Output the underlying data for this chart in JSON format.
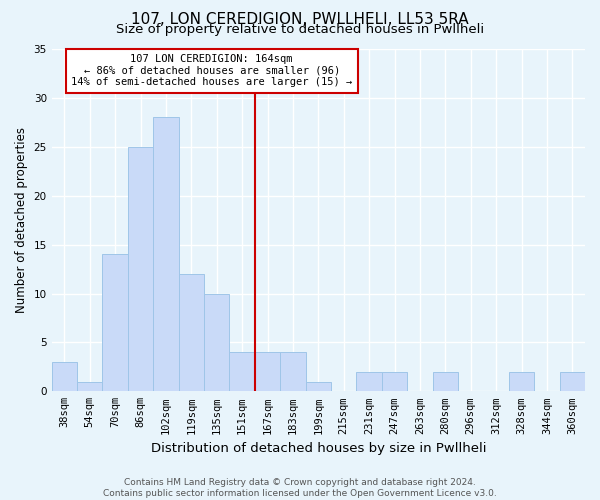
{
  "title": "107, LON CEREDIGION, PWLLHELI, LL53 5RA",
  "subtitle": "Size of property relative to detached houses in Pwllheli",
  "xlabel": "Distribution of detached houses by size in Pwllheli",
  "ylabel": "Number of detached properties",
  "categories": [
    "38sqm",
    "54sqm",
    "70sqm",
    "86sqm",
    "102sqm",
    "119sqm",
    "135sqm",
    "151sqm",
    "167sqm",
    "183sqm",
    "199sqm",
    "215sqm",
    "231sqm",
    "247sqm",
    "263sqm",
    "280sqm",
    "296sqm",
    "312sqm",
    "328sqm",
    "344sqm",
    "360sqm"
  ],
  "values": [
    3,
    1,
    14,
    25,
    28,
    12,
    10,
    4,
    4,
    4,
    1,
    0,
    2,
    2,
    0,
    2,
    0,
    0,
    2,
    0,
    2
  ],
  "bar_color": "#c9daf8",
  "bar_edge_color": "#9fc5e8",
  "background_color": "#e8f4fb",
  "grid_color": "#ffffff",
  "vline_x_index": 8,
  "vline_color": "#cc0000",
  "annotation_box_color": "#cc0000",
  "annotation_lines": [
    "107 LON CEREDIGION: 164sqm",
    "← 86% of detached houses are smaller (96)",
    "14% of semi-detached houses are larger (15) →"
  ],
  "annotation_fontsize": 7.5,
  "ylim": [
    0,
    35
  ],
  "yticks": [
    0,
    5,
    10,
    15,
    20,
    25,
    30,
    35
  ],
  "footer_line1": "Contains HM Land Registry data © Crown copyright and database right 2024.",
  "footer_line2": "Contains public sector information licensed under the Open Government Licence v3.0.",
  "title_fontsize": 11,
  "subtitle_fontsize": 9.5,
  "xlabel_fontsize": 9.5,
  "ylabel_fontsize": 8.5,
  "tick_fontsize": 7.5,
  "footer_fontsize": 6.5
}
